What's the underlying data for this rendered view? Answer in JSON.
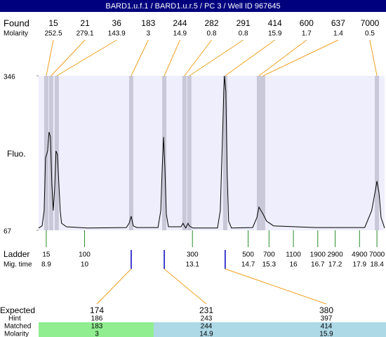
{
  "title": "BARD1.u.f.1 / BARD1.u.r.5 / PC 3 / Well ID 967645",
  "found": {
    "label": "Found",
    "values": [
      15,
      21,
      36,
      183,
      244,
      282,
      291,
      414,
      600,
      637,
      7000
    ],
    "times": [
      8.9,
      9.04,
      9.2,
      11.34,
      12.29,
      12.87,
      13.01,
      14.04,
      15.01,
      15.13,
      18.4
    ]
  },
  "molarity": {
    "label": "Molarity",
    "values": [
      252.5,
      279.1,
      143.9,
      3,
      14.9,
      0.8,
      0.8,
      15.9,
      1.7,
      1.4,
      0.5
    ]
  },
  "chart_data": {
    "type": "line",
    "y_label": "Fluo.",
    "ylim": [
      67,
      346
    ],
    "yticks": [
      67,
      346
    ],
    "xlim": [
      8.68,
      18.62
    ],
    "x": [
      8.68,
      8.78,
      8.84,
      8.88,
      8.94,
      8.98,
      9.02,
      9.06,
      9.1,
      9.14,
      9.18,
      9.22,
      9.26,
      9.3,
      9.34,
      9.48,
      10.07,
      11.2,
      11.28,
      11.34,
      11.4,
      11.5,
      12.11,
      12.19,
      12.23,
      12.27,
      12.31,
      12.35,
      12.41,
      12.77,
      12.83,
      12.87,
      12.91,
      12.97,
      13.01,
      13.11,
      13.82,
      13.9,
      13.96,
      14.0,
      14.02,
      14.06,
      14.1,
      14.14,
      14.22,
      14.83,
      14.95,
      15.01,
      15.07,
      15.13,
      15.23,
      15.43,
      16.64,
      18.05,
      18.25,
      18.36,
      18.4,
      18.46,
      18.52,
      18.62
    ],
    "series": [
      {
        "color": "#000000",
        "values": [
          71,
          75,
          102.5,
          197.6,
          210.3,
          244.5,
          235.6,
          153.2,
          102.5,
          140.5,
          210.3,
          204,
          153.2,
          102.5,
          79.7,
          73.3,
          71,
          72,
          79.7,
          92.4,
          75,
          72,
          72,
          102.5,
          178.6,
          235.6,
          178.6,
          96.2,
          73.3,
          73.3,
          79.7,
          75,
          71,
          79.7,
          75,
          71,
          71,
          102.5,
          229.3,
          318,
          346,
          318,
          165.9,
          83.5,
          71,
          72,
          89.8,
          108.8,
          102.5,
          96.2,
          83.5,
          75,
          72,
          72,
          102.5,
          140.5,
          155.8,
          134.2,
          89.8,
          71
        ]
      }
    ]
  },
  "ladder": {
    "label": "Ladder",
    "values": [
      15,
      100,
      300,
      500,
      700,
      1100,
      1900,
      2900,
      4900,
      7000
    ]
  },
  "mig_time": {
    "label": "Mig. time",
    "values": [
      8.9,
      10,
      13.1,
      14.7,
      15.3,
      16,
      16.7,
      17.2,
      17.9,
      18.4
    ]
  },
  "expected": {
    "label": "Expected",
    "values": [
      174,
      231,
      380
    ]
  },
  "hint": {
    "label": "Hint",
    "values": [
      186,
      243,
      397
    ]
  },
  "matched": {
    "label": "Matched",
    "values": [
      183,
      244,
      414
    ]
  },
  "matched_molarity": {
    "label": "Molarity",
    "values": [
      3,
      14.9,
      15.9
    ]
  }
}
